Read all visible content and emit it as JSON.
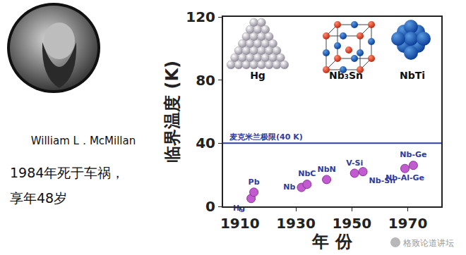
{
  "left_panel": {
    "name": "William L．McMillan",
    "caption": [
      "1984年死于车祸，",
      "享年48岁"
    ]
  },
  "chart_data": {
    "type": "scatter",
    "x": [
      1914,
      1915,
      1932,
      1934,
      1941,
      1951,
      1954,
      1969,
      1972
    ],
    "values": [
      5,
      9,
      12,
      14,
      17,
      21,
      22,
      24,
      26
    ],
    "point_labels": [
      "Hg",
      "Pb",
      "Nb",
      "NbC",
      "NbN",
      "V-Si",
      "Nb-Sn",
      "Nb-Al-Ge",
      "Nb-Ge"
    ],
    "color": "#c25ad0",
    "xlim": [
      1904,
      1982
    ],
    "xticks": [
      1910,
      1930,
      1950,
      1970
    ],
    "ylim": [
      0,
      120
    ],
    "yticks": [
      0,
      40,
      80,
      120
    ],
    "x_label": "年 份",
    "y_label": "临界温度 (K)",
    "grid": false,
    "reference_line": {
      "value": 40,
      "label": "麦克米兰极限(40 K)",
      "color": "#2f3fa0"
    },
    "structure_labels": [
      "Hg",
      "Nb₃Sn",
      "NbTi"
    ]
  },
  "watermark": "格致论道讲坛"
}
